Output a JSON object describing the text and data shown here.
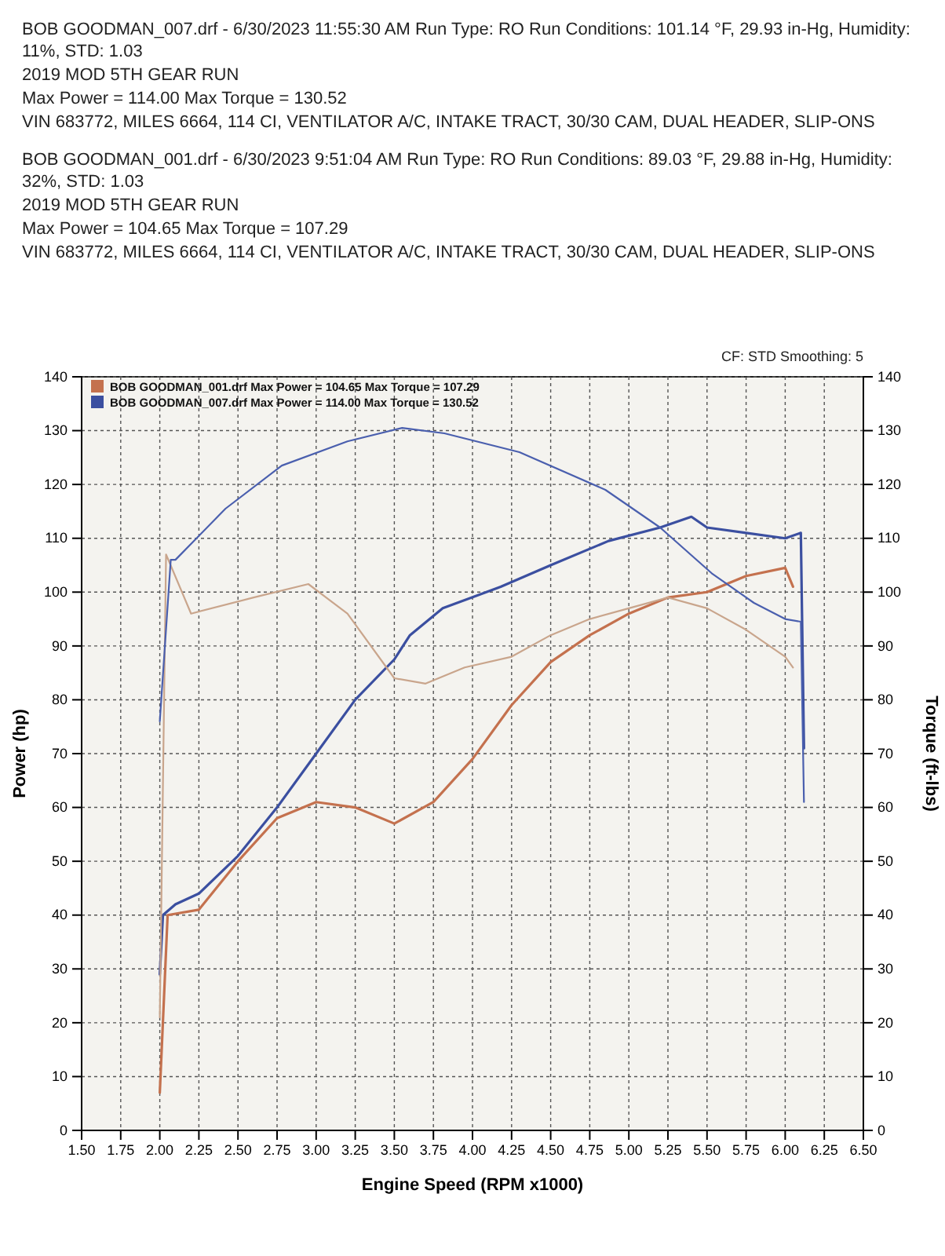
{
  "chart_data": {
    "type": "line",
    "xlabel": "Engine Speed (RPM x1000)",
    "ylabel": "Power (hp)",
    "y2label": "Torque (ft-lbs)",
    "annotations": [
      "BOB GOODMAN_007.drf - 6/30/2023 11:55:30 AM Run Type: RO Run Conditions: 101.14 °F, 29.93 in-Hg, Humidity: 11%, STD: 1.03",
      "2019 MOD 5TH GEAR RUN",
      "Max Power = 114.00  Max Torque = 130.52",
      "VIN 683772, MILES 6664, 114 CI, VENTILATOR A/C, INTAKE TRACT, 30/30 CAM, DUAL HEADER, SLIP-ONS",
      "BOB GOODMAN_001.drf - 6/30/2023 9:51:04 AM Run Type: RO Run Conditions: 89.03 °F, 29.88 in-Hg, Humidity: 32%, STD: 1.03",
      "2019 MOD 5TH GEAR RUN",
      "Max Power = 104.65  Max Torque = 107.29",
      "VIN 683772, MILES 6664, 114 CI, VENTILATOR A/C, INTAKE TRACT, 30/30 CAM, DUAL HEADER, SLIP-ONS",
      "CF: STD  Smoothing: 5"
    ],
    "series": [
      {
        "name": "BOB GOODMAN_001.drf Max Power = 104.65  Max Torque = 107.29",
        "color": "#c4714e",
        "x": [
          2.0,
          2.05,
          2.25,
          2.5,
          2.75,
          3.0,
          3.25,
          3.5,
          3.75,
          4.0,
          4.25,
          4.5,
          4.75,
          5.0,
          5.25,
          5.5,
          5.75,
          6.0,
          6.05
        ],
        "values": [
          7,
          40,
          41,
          50,
          58,
          61,
          60,
          57,
          61,
          69,
          79,
          87,
          92,
          96,
          99,
          100,
          103,
          104.5,
          101
        ]
      },
      {
        "name": "BOB GOODMAN_007.drf Max Power = 114.00  Max Torque = 130.52",
        "color": "#3b4fa0",
        "x": [
          2.0,
          2.02,
          2.1,
          2.25,
          2.5,
          2.75,
          3.0,
          3.25,
          3.5,
          3.6,
          3.81,
          4.18,
          4.5,
          4.87,
          5.2,
          5.4,
          5.5,
          5.75,
          6.0,
          6.1,
          6.12
        ],
        "values": [
          29,
          40,
          42,
          44,
          51,
          60,
          70,
          80,
          87.5,
          92,
          97,
          101,
          105,
          109.5,
          112,
          114,
          112,
          111,
          110,
          111,
          71
        ]
      },
      {
        "color": "#c9a58c",
        "axis": "y2",
        "x": [
          2.0,
          2.04,
          2.2,
          2.6,
          2.95,
          3.2,
          3.5,
          3.7,
          3.95,
          4.25,
          4.5,
          4.75,
          5.0,
          5.25,
          5.5,
          5.75,
          6.0,
          6.05
        ],
        "values": [
          21,
          107,
          96,
          99,
          101.5,
          96,
          84,
          83,
          86,
          88,
          92,
          95,
          97,
          99,
          97,
          93,
          88,
          86
        ]
      },
      {
        "color": "#4a5fae",
        "axis": "y2",
        "x": [
          2.0,
          2.07,
          2.1,
          2.42,
          2.78,
          3.2,
          3.55,
          3.82,
          4.3,
          4.85,
          5.2,
          5.53,
          5.8,
          6.0,
          6.1,
          6.12
        ],
        "values": [
          76,
          106,
          106,
          115.5,
          123.5,
          128,
          130.5,
          129.5,
          126,
          119,
          112,
          103.5,
          98,
          95,
          94.5,
          61
        ]
      }
    ],
    "xlim": [
      1.5,
      6.5
    ],
    "xticks": [
      {
        "value": 1.5,
        "label": "1.50"
      },
      {
        "value": 1.75,
        "label": "1.75"
      },
      {
        "value": 2,
        "label": "2.00"
      },
      {
        "value": 2.25,
        "label": "2.25"
      },
      {
        "value": 2.5,
        "label": "2.50"
      },
      {
        "value": 2.75,
        "label": "2.75"
      },
      {
        "value": 3,
        "label": "3.00"
      },
      {
        "value": 3.25,
        "label": "3.25"
      },
      {
        "value": 3.5,
        "label": "3.50"
      },
      {
        "value": 3.75,
        "label": "3.75"
      },
      {
        "value": 4,
        "label": "4.00"
      },
      {
        "value": 4.25,
        "label": "4.25"
      },
      {
        "value": 4.5,
        "label": "4.50"
      },
      {
        "value": 4.75,
        "label": "4.75"
      },
      {
        "value": 5,
        "label": "5.00"
      },
      {
        "value": 5.25,
        "label": "5.25"
      },
      {
        "value": 5.5,
        "label": "5.50"
      },
      {
        "value": 5.75,
        "label": "5.75"
      },
      {
        "value": 6,
        "label": "6.00"
      },
      {
        "value": 6.25,
        "label": "6.25"
      },
      {
        "value": 6.5,
        "label": "6.50"
      }
    ],
    "ylim": [
      0,
      140
    ],
    "yticks": [
      0,
      10,
      20,
      30,
      40,
      50,
      60,
      70,
      80,
      90,
      100,
      110,
      120,
      130,
      140
    ],
    "y2lim": [
      0,
      140
    ],
    "y2ticks": [
      0,
      10,
      20,
      30,
      40,
      50,
      60,
      70,
      80,
      90,
      100,
      110,
      120,
      130,
      140
    ],
    "grid": true,
    "legend": "top left",
    "line_style": "solid"
  }
}
